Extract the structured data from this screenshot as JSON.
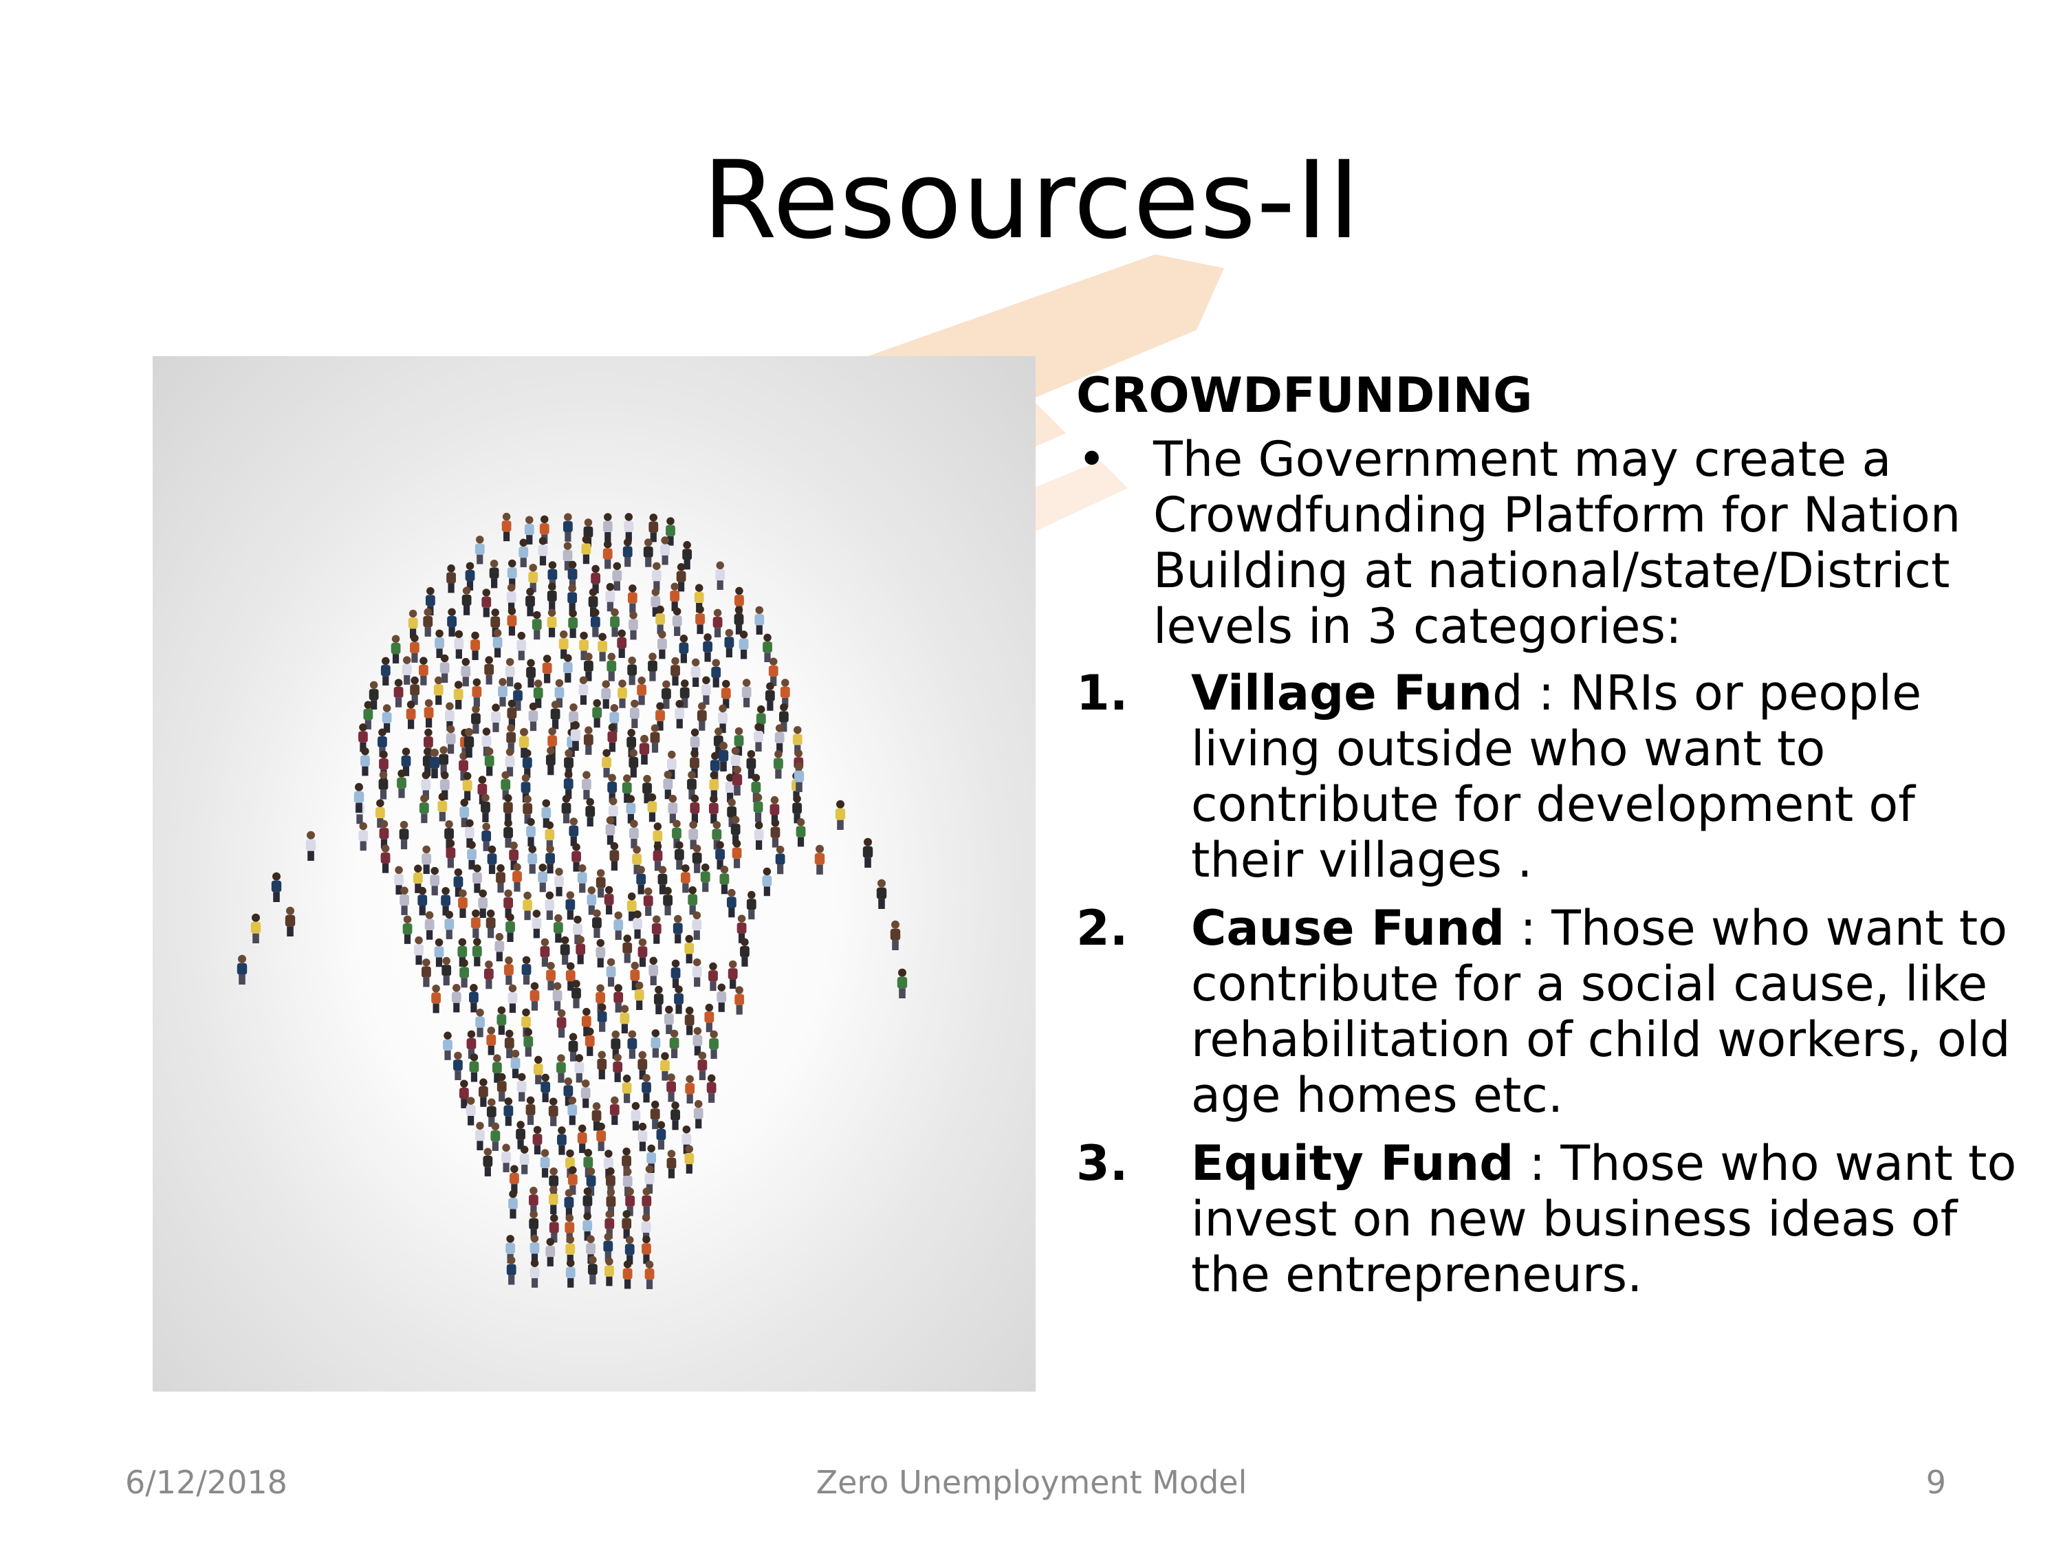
{
  "slide": {
    "title": "Resources-II",
    "heading": "CROWDFUNDING",
    "bullet_mark": "•",
    "bullet_text": "The Government may create a Crowdfunding Platform for Nation Building at national/state/District levels in 3 categories:",
    "items": [
      {
        "number": "1.",
        "bold": "Village Fun",
        "rest": "d : NRIs or people living outside who want to contribute for development of their villages ."
      },
      {
        "number": "2.",
        "bold": "Cause Fund",
        "rest": " : Those who want to contribute for a social cause, like rehabilitation of child workers, old age homes etc."
      },
      {
        "number": "3.",
        "bold": "Equity Fund",
        "rest": " : Those who want to invest on new business ideas of the entrepreneurs."
      }
    ]
  },
  "picture": {
    "subject": "crowd of people forming a light bulb",
    "figure_colors": [
      "#1f3c63",
      "#2b2b2b",
      "#c85a2a",
      "#e2c34a",
      "#9bbbd9",
      "#7a2c3a",
      "#3d7a3f",
      "#d9d9e8",
      "#5a3a2a",
      "#b8b8c8"
    ]
  },
  "watermark": {
    "colors": {
      "saffron": "#f6c9a0",
      "chakra": "#c8cbe8",
      "green": "#cfe9cf"
    }
  },
  "footer": {
    "date": "6/12/2018",
    "center": "Zero Unemployment Model",
    "page": "9"
  }
}
